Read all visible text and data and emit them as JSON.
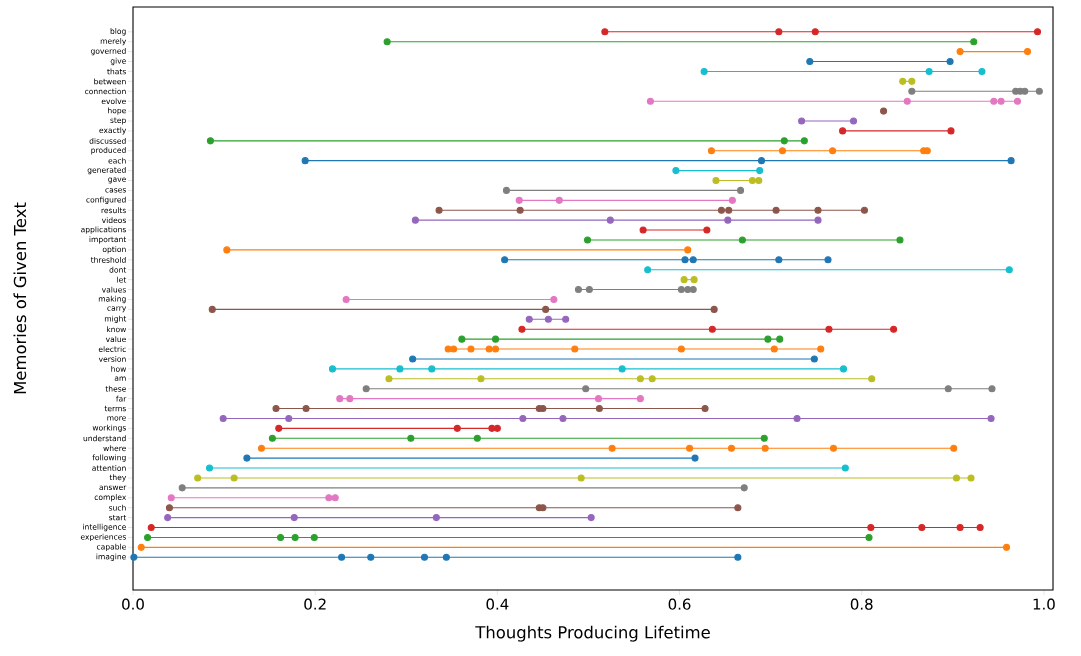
{
  "chart_data": {
    "type": "line",
    "xlabel": "Thoughts Producing Lifetime",
    "ylabel": "Memories of Given Text",
    "marker": "circle",
    "line_style": "solid",
    "grid": false,
    "orientation": "horizontal",
    "xlim": [
      0,
      1.01
    ],
    "xticks": [
      {
        "value": 0,
        "label": "0.0"
      },
      0.2,
      0.4,
      0.6,
      0.8,
      {
        "value": 1,
        "label": "1.0"
      }
    ],
    "categories": [
      "blog",
      "merely",
      "governed",
      "give",
      "thats",
      "between",
      "connection",
      "evolve",
      "hope",
      "step",
      "exactly",
      "discussed",
      "produced",
      "each",
      "generated",
      "gave",
      "cases",
      "configured",
      "results",
      "videos",
      "applications",
      "important",
      "option",
      "threshold",
      "dont",
      "let",
      "values",
      "making",
      "carry",
      "might",
      "know",
      "value",
      "electric",
      "version",
      "how",
      "am",
      "these",
      "far",
      "terms",
      "more",
      "workings",
      "understand",
      "where",
      "following",
      "attention",
      "they",
      "answer",
      "complex",
      "such",
      "start",
      "intelligence",
      "experiences",
      "capable",
      "imagine"
    ],
    "series": [
      {
        "color": "#1f77b4",
        "x": [
          "imagine",
          "imagine",
          "imagine",
          "imagine",
          "imagine",
          "imagine"
        ],
        "values": [
          0.001,
          0.229,
          0.261,
          0.32,
          0.344,
          0.664
        ]
      },
      {
        "color": "#ff7f0e",
        "x": [
          "capable",
          "capable"
        ],
        "values": [
          0.009,
          0.959
        ]
      },
      {
        "color": "#2ca02c",
        "x": [
          "experiences",
          "experiences",
          "experiences",
          "experiences",
          "experiences"
        ],
        "values": [
          0.016,
          0.162,
          0.178,
          0.199,
          0.808
        ]
      },
      {
        "color": "#d62728",
        "x": [
          "intelligence",
          "intelligence",
          "intelligence",
          "intelligence",
          "intelligence"
        ],
        "values": [
          0.02,
          0.81,
          0.866,
          0.908,
          0.93
        ]
      },
      {
        "color": "#9467bd",
        "x": [
          "start",
          "start",
          "start",
          "start"
        ],
        "values": [
          0.038,
          0.177,
          0.333,
          0.503
        ]
      },
      {
        "color": "#8c564b",
        "x": [
          "such",
          "such",
          "such",
          "such"
        ],
        "values": [
          0.04,
          0.446,
          0.45,
          0.664
        ]
      },
      {
        "color": "#e377c2",
        "x": [
          "complex",
          "complex",
          "complex"
        ],
        "values": [
          0.042,
          0.215,
          0.222
        ]
      },
      {
        "color": "#7f7f7f",
        "x": [
          "answer",
          "answer"
        ],
        "values": [
          0.054,
          0.671
        ]
      },
      {
        "color": "#bcbd22",
        "x": [
          "they",
          "they",
          "they",
          "they",
          "they"
        ],
        "values": [
          0.071,
          0.111,
          0.492,
          0.904,
          0.92
        ]
      },
      {
        "color": "#17becf",
        "x": [
          "attention",
          "attention"
        ],
        "values": [
          0.084,
          0.782
        ]
      },
      {
        "color": "#1f77b4",
        "x": [
          "following",
          "following"
        ],
        "values": [
          0.125,
          0.617
        ]
      },
      {
        "color": "#ff7f0e",
        "x": [
          "where",
          "where",
          "where",
          "where",
          "where",
          "where",
          "where"
        ],
        "values": [
          0.141,
          0.526,
          0.611,
          0.657,
          0.694,
          0.769,
          0.901
        ]
      },
      {
        "color": "#2ca02c",
        "x": [
          "understand",
          "understand",
          "understand",
          "understand"
        ],
        "values": [
          0.153,
          0.305,
          0.378,
          0.693
        ]
      },
      {
        "color": "#d62728",
        "x": [
          "workings",
          "workings",
          "workings",
          "workings"
        ],
        "values": [
          0.16,
          0.356,
          0.394,
          0.4
        ]
      },
      {
        "color": "#9467bd",
        "x": [
          "more",
          "more",
          "more",
          "more",
          "more",
          "more"
        ],
        "values": [
          0.099,
          0.171,
          0.428,
          0.472,
          0.729,
          0.942
        ]
      },
      {
        "color": "#8c564b",
        "x": [
          "terms",
          "terms",
          "terms",
          "terms",
          "terms",
          "terms"
        ],
        "values": [
          0.157,
          0.19,
          0.446,
          0.45,
          0.512,
          0.628
        ]
      },
      {
        "color": "#e377c2",
        "x": [
          "far",
          "far",
          "far",
          "far"
        ],
        "values": [
          0.227,
          0.238,
          0.511,
          0.557
        ]
      },
      {
        "color": "#7f7f7f",
        "x": [
          "these",
          "these",
          "these",
          "these"
        ],
        "values": [
          0.256,
          0.497,
          0.895,
          0.943
        ]
      },
      {
        "color": "#bcbd22",
        "x": [
          "am",
          "am",
          "am",
          "am",
          "am"
        ],
        "values": [
          0.281,
          0.382,
          0.557,
          0.57,
          0.811
        ]
      },
      {
        "color": "#17becf",
        "x": [
          "how",
          "how",
          "how",
          "how",
          "how"
        ],
        "values": [
          0.219,
          0.293,
          0.328,
          0.537,
          0.78
        ]
      },
      {
        "color": "#1f77b4",
        "x": [
          "version",
          "version"
        ],
        "values": [
          0.307,
          0.748
        ]
      },
      {
        "color": "#ff7f0e",
        "x": [
          "electric",
          "electric",
          "electric",
          "electric",
          "electric",
          "electric",
          "electric",
          "electric",
          "electric"
        ],
        "values": [
          0.346,
          0.352,
          0.371,
          0.391,
          0.398,
          0.485,
          0.602,
          0.704,
          0.755
        ]
      },
      {
        "color": "#2ca02c",
        "x": [
          "value",
          "value",
          "value",
          "value"
        ],
        "values": [
          0.361,
          0.398,
          0.697,
          0.71
        ]
      },
      {
        "color": "#d62728",
        "x": [
          "know",
          "know",
          "know",
          "know"
        ],
        "values": [
          0.427,
          0.636,
          0.764,
          0.835
        ]
      },
      {
        "color": "#9467bd",
        "x": [
          "might",
          "might",
          "might"
        ],
        "values": [
          0.435,
          0.456,
          0.475
        ]
      },
      {
        "color": "#8c564b",
        "x": [
          "carry",
          "carry",
          "carry"
        ],
        "values": [
          0.087,
          0.453,
          0.638
        ]
      },
      {
        "color": "#e377c2",
        "x": [
          "making",
          "making"
        ],
        "values": [
          0.234,
          0.462
        ]
      },
      {
        "color": "#7f7f7f",
        "x": [
          "values",
          "values",
          "values",
          "values",
          "values"
        ],
        "values": [
          0.489,
          0.501,
          0.602,
          0.609,
          0.615
        ]
      },
      {
        "color": "#bcbd22",
        "x": [
          "let",
          "let"
        ],
        "values": [
          0.605,
          0.616
        ]
      },
      {
        "color": "#17becf",
        "x": [
          "dont",
          "dont"
        ],
        "values": [
          0.565,
          0.962
        ]
      },
      {
        "color": "#1f77b4",
        "x": [
          "threshold",
          "threshold",
          "threshold",
          "threshold",
          "threshold"
        ],
        "values": [
          0.408,
          0.606,
          0.615,
          0.709,
          0.763
        ]
      },
      {
        "color": "#ff7f0e",
        "x": [
          "option",
          "option"
        ],
        "values": [
          0.103,
          0.609
        ]
      },
      {
        "color": "#2ca02c",
        "x": [
          "important",
          "important",
          "important"
        ],
        "values": [
          0.499,
          0.669,
          0.842
        ]
      },
      {
        "color": "#d62728",
        "x": [
          "applications",
          "applications"
        ],
        "values": [
          0.56,
          0.63
        ]
      },
      {
        "color": "#9467bd",
        "x": [
          "videos",
          "videos",
          "videos",
          "videos"
        ],
        "values": [
          0.31,
          0.524,
          0.653,
          0.752
        ]
      },
      {
        "color": "#8c564b",
        "x": [
          "results",
          "results",
          "results",
          "results",
          "results",
          "results",
          "results"
        ],
        "values": [
          0.336,
          0.425,
          0.646,
          0.654,
          0.706,
          0.752,
          0.803
        ]
      },
      {
        "color": "#e377c2",
        "x": [
          "configured",
          "configured",
          "configured"
        ],
        "values": [
          0.424,
          0.468,
          0.658
        ]
      },
      {
        "color": "#7f7f7f",
        "x": [
          "cases",
          "cases"
        ],
        "values": [
          0.41,
          0.667
        ]
      },
      {
        "color": "#bcbd22",
        "x": [
          "gave",
          "gave",
          "gave"
        ],
        "values": [
          0.64,
          0.68,
          0.687
        ]
      },
      {
        "color": "#17becf",
        "x": [
          "generated",
          "generated"
        ],
        "values": [
          0.596,
          0.688
        ]
      },
      {
        "color": "#1f77b4",
        "x": [
          "each",
          "each",
          "each"
        ],
        "values": [
          0.189,
          0.69,
          0.964
        ]
      },
      {
        "color": "#ff7f0e",
        "x": [
          "produced",
          "produced",
          "produced",
          "produced",
          "produced"
        ],
        "values": [
          0.635,
          0.713,
          0.768,
          0.868,
          0.872
        ]
      },
      {
        "color": "#2ca02c",
        "x": [
          "discussed",
          "discussed",
          "discussed"
        ],
        "values": [
          0.085,
          0.715,
          0.737
        ]
      },
      {
        "color": "#d62728",
        "x": [
          "exactly",
          "exactly"
        ],
        "values": [
          0.779,
          0.898
        ]
      },
      {
        "color": "#9467bd",
        "x": [
          "step",
          "step"
        ],
        "values": [
          0.734,
          0.791
        ]
      },
      {
        "color": "#8c564b",
        "x": [
          "hope"
        ],
        "values": [
          0.824
        ]
      },
      {
        "color": "#e377c2",
        "x": [
          "evolve",
          "evolve",
          "evolve",
          "evolve",
          "evolve"
        ],
        "values": [
          0.568,
          0.85,
          0.945,
          0.953,
          0.971
        ]
      },
      {
        "color": "#7f7f7f",
        "x": [
          "connection",
          "connection",
          "connection",
          "connection",
          "connection"
        ],
        "values": [
          0.855,
          0.969,
          0.974,
          0.979,
          0.995
        ]
      },
      {
        "color": "#bcbd22",
        "x": [
          "between",
          "between"
        ],
        "values": [
          0.845,
          0.855
        ]
      },
      {
        "color": "#17becf",
        "x": [
          "thats",
          "thats",
          "thats"
        ],
        "values": [
          0.627,
          0.874,
          0.932
        ]
      },
      {
        "color": "#1f77b4",
        "x": [
          "give",
          "give"
        ],
        "values": [
          0.743,
          0.897
        ]
      },
      {
        "color": "#ff7f0e",
        "x": [
          "governed",
          "governed"
        ],
        "values": [
          0.908,
          0.982
        ]
      },
      {
        "color": "#2ca02c",
        "x": [
          "merely",
          "merely"
        ],
        "values": [
          0.279,
          0.923
        ]
      },
      {
        "color": "#d62728",
        "x": [
          "blog",
          "blog",
          "blog",
          "blog"
        ],
        "values": [
          0.518,
          0.709,
          0.749,
          0.993
        ]
      }
    ]
  }
}
